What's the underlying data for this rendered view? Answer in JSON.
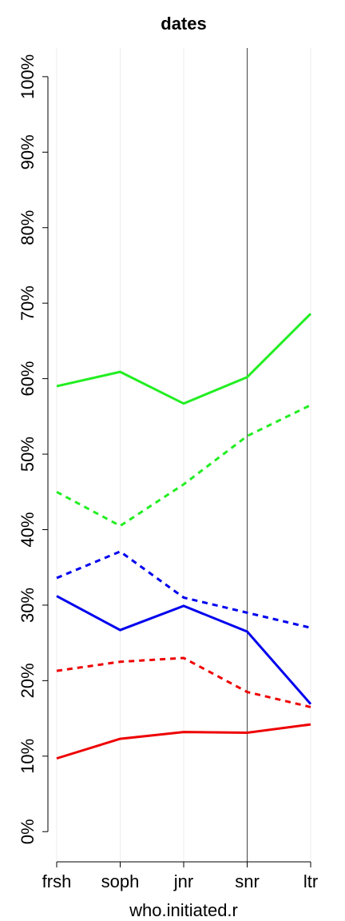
{
  "chart_data": {
    "type": "line",
    "title": "dates",
    "x_label": "who.initiated.r",
    "categories": [
      "frsh",
      "soph",
      "jnr",
      "snr",
      "ltr"
    ],
    "series": [
      {
        "color": "#22ee22",
        "line_style": "solid",
        "values": [
          59.0,
          60.9,
          56.7,
          60.2,
          68.6
        ]
      },
      {
        "color": "#22ee22",
        "line_style": "dashed",
        "values": [
          45.0,
          40.5,
          46.0,
          52.4,
          56.5
        ]
      },
      {
        "color": "#0000ee",
        "line_style": "dashed",
        "values": [
          33.6,
          37.1,
          31.0,
          29.0,
          27.0
        ]
      },
      {
        "color": "#0000ee",
        "line_style": "solid",
        "values": [
          31.2,
          26.7,
          29.9,
          26.5,
          16.9
        ]
      },
      {
        "color": "#ee0000",
        "line_style": "dashed",
        "values": [
          21.3,
          22.5,
          23.0,
          18.5,
          16.5
        ]
      },
      {
        "color": "#ee0000",
        "line_style": "solid",
        "values": [
          9.7,
          12.3,
          13.2,
          13.1,
          14.2
        ]
      }
    ],
    "ylim": [
      -4,
      103.8
    ],
    "yticks": [
      {
        "value": 0,
        "label": "0%"
      },
      {
        "value": 10,
        "label": "10%"
      },
      {
        "value": 20,
        "label": "20%"
      },
      {
        "value": 30,
        "label": "30%"
      },
      {
        "value": 40,
        "label": "40%"
      },
      {
        "value": 50,
        "label": "50%"
      },
      {
        "value": 60,
        "label": "60%"
      },
      {
        "value": 70,
        "label": "70%"
      },
      {
        "value": 80,
        "label": "80%"
      },
      {
        "value": 90,
        "label": "90%"
      },
      {
        "value": 100,
        "label": "100%"
      }
    ],
    "grid": true,
    "vline": "snr"
  }
}
